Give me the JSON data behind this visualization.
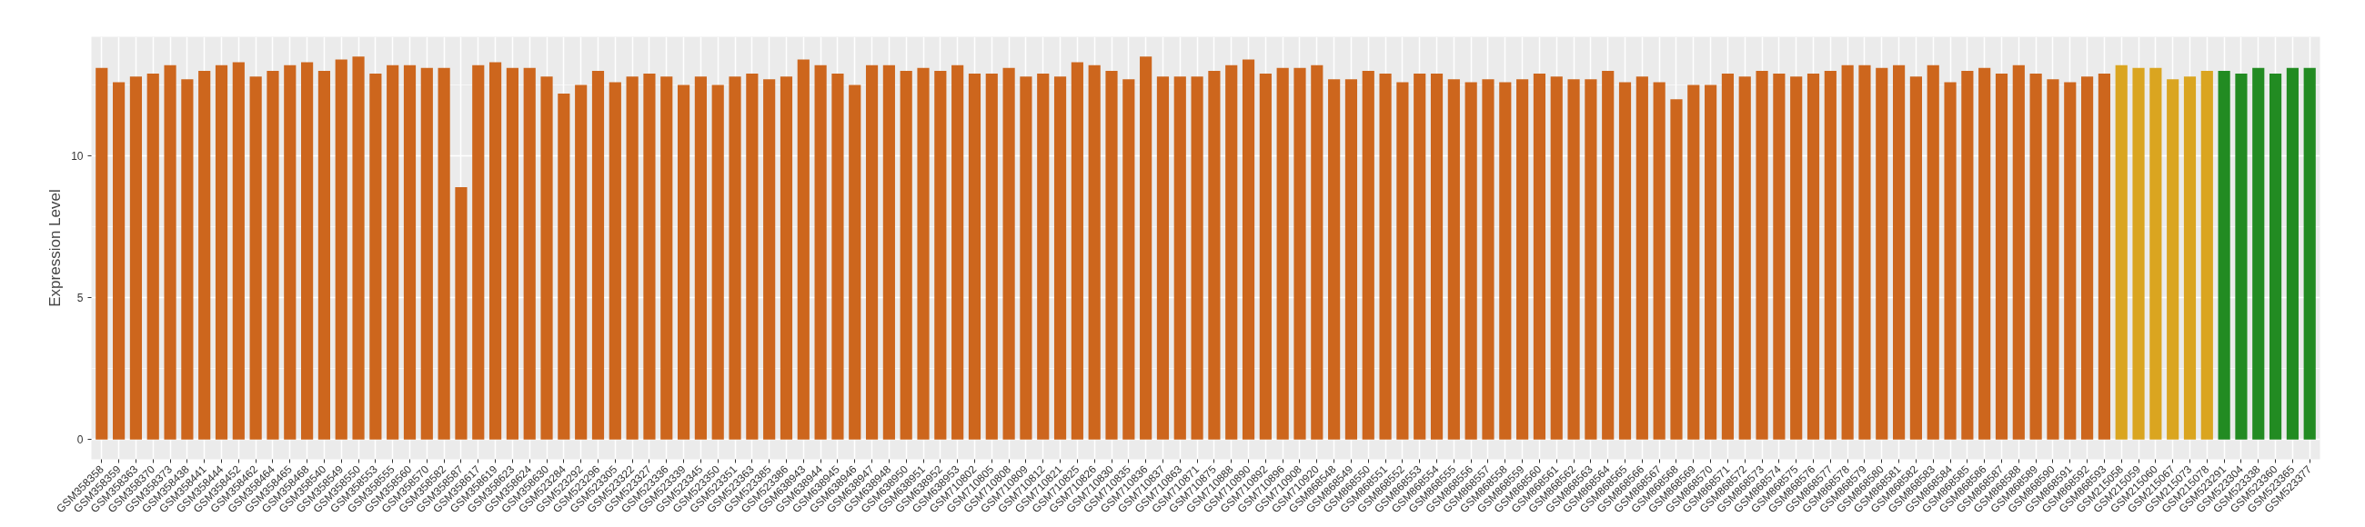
{
  "chart_data": {
    "type": "bar",
    "ylabel": "Expression Level",
    "categories": [
      "GSM358358",
      "GSM358359",
      "GSM358363",
      "GSM358370",
      "GSM358373",
      "GSM358438",
      "GSM358441",
      "GSM358444",
      "GSM358452",
      "GSM358462",
      "GSM358464",
      "GSM358465",
      "GSM358468",
      "GSM358540",
      "GSM358549",
      "GSM358550",
      "GSM358553",
      "GSM358555",
      "GSM358560",
      "GSM358570",
      "GSM358582",
      "GSM358587",
      "GSM358617",
      "GSM358619",
      "GSM358623",
      "GSM358624",
      "GSM358630",
      "GSM523284",
      "GSM523292",
      "GSM523296",
      "GSM523305",
      "GSM523322",
      "GSM523327",
      "GSM523336",
      "GSM523339",
      "GSM523345",
      "GSM523350",
      "GSM523351",
      "GSM523363",
      "GSM523385",
      "GSM523386",
      "GSM638943",
      "GSM638944",
      "GSM638945",
      "GSM638946",
      "GSM638947",
      "GSM638948",
      "GSM638950",
      "GSM638951",
      "GSM638952",
      "GSM638953",
      "GSM710802",
      "GSM710805",
      "GSM710808",
      "GSM710809",
      "GSM710812",
      "GSM710821",
      "GSM710825",
      "GSM710826",
      "GSM710830",
      "GSM710835",
      "GSM710836",
      "GSM710837",
      "GSM710863",
      "GSM710871",
      "GSM710875",
      "GSM710888",
      "GSM710890",
      "GSM710892",
      "GSM710896",
      "GSM710908",
      "GSM710920",
      "GSM868548",
      "GSM868549",
      "GSM868550",
      "GSM868551",
      "GSM868552",
      "GSM868553",
      "GSM868554",
      "GSM868555",
      "GSM868556",
      "GSM868557",
      "GSM868558",
      "GSM868559",
      "GSM868560",
      "GSM868561",
      "GSM868562",
      "GSM868563",
      "GSM868564",
      "GSM868565",
      "GSM868566",
      "GSM868567",
      "GSM868568",
      "GSM868569",
      "GSM868570",
      "GSM868571",
      "GSM868572",
      "GSM868573",
      "GSM868574",
      "GSM868575",
      "GSM868576",
      "GSM868577",
      "GSM868578",
      "GSM868579",
      "GSM868580",
      "GSM868581",
      "GSM868582",
      "GSM868583",
      "GSM868584",
      "GSM868585",
      "GSM868586",
      "GSM868587",
      "GSM868588",
      "GSM868589",
      "GSM868590",
      "GSM868591",
      "GSM868592",
      "GSM868593",
      "GSM215058",
      "GSM215059",
      "GSM215060",
      "GSM215067",
      "GSM215073",
      "GSM215078",
      "GSM523291",
      "GSM523304",
      "GSM523338",
      "GSM523360",
      "GSM523365",
      "GSM523377"
    ],
    "values": [
      13.1,
      12.6,
      12.8,
      12.9,
      13.2,
      12.7,
      13.0,
      13.2,
      13.3,
      12.8,
      13.0,
      13.2,
      13.3,
      13.0,
      13.4,
      13.5,
      12.9,
      13.2,
      13.2,
      13.1,
      13.1,
      8.9,
      13.2,
      13.3,
      13.1,
      13.1,
      12.8,
      12.2,
      12.5,
      13.0,
      12.6,
      12.8,
      12.9,
      12.8,
      12.5,
      12.8,
      12.5,
      12.8,
      12.9,
      12.7,
      12.8,
      13.4,
      13.2,
      12.9,
      12.5,
      13.2,
      13.2,
      13.0,
      13.1,
      13.0,
      13.2,
      12.9,
      12.9,
      13.1,
      12.8,
      12.9,
      12.8,
      13.3,
      13.2,
      13.0,
      12.7,
      13.5,
      12.8,
      12.8,
      12.8,
      13.0,
      13.2,
      13.4,
      12.9,
      13.1,
      13.1,
      13.2,
      12.7,
      12.7,
      13.0,
      12.9,
      12.6,
      12.9,
      12.9,
      12.7,
      12.6,
      12.7,
      12.6,
      12.7,
      12.9,
      12.8,
      12.7,
      12.7,
      13.0,
      12.6,
      12.8,
      12.6,
      12.0,
      12.5,
      12.5,
      12.9,
      12.8,
      13.0,
      12.9,
      12.8,
      12.9,
      13.0,
      13.2,
      13.2,
      13.1,
      13.2,
      12.8,
      13.2,
      12.6,
      13.0,
      13.1,
      12.9,
      13.2,
      12.9,
      12.7,
      12.6,
      12.8,
      12.9,
      13.2,
      13.1,
      13.1,
      12.7,
      12.8,
      13.0,
      13.0,
      12.9,
      13.1,
      12.9,
      13.1,
      13.1
    ],
    "colors": [
      "#cd661d",
      "#cd661d",
      "#cd661d",
      "#cd661d",
      "#cd661d",
      "#cd661d",
      "#cd661d",
      "#cd661d",
      "#cd661d",
      "#cd661d",
      "#cd661d",
      "#cd661d",
      "#cd661d",
      "#cd661d",
      "#cd661d",
      "#cd661d",
      "#cd661d",
      "#cd661d",
      "#cd661d",
      "#cd661d",
      "#cd661d",
      "#cd661d",
      "#cd661d",
      "#cd661d",
      "#cd661d",
      "#cd661d",
      "#cd661d",
      "#cd661d",
      "#cd661d",
      "#cd661d",
      "#cd661d",
      "#cd661d",
      "#cd661d",
      "#cd661d",
      "#cd661d",
      "#cd661d",
      "#cd661d",
      "#cd661d",
      "#cd661d",
      "#cd661d",
      "#cd661d",
      "#cd661d",
      "#cd661d",
      "#cd661d",
      "#cd661d",
      "#cd661d",
      "#cd661d",
      "#cd661d",
      "#cd661d",
      "#cd661d",
      "#cd661d",
      "#cd661d",
      "#cd661d",
      "#cd661d",
      "#cd661d",
      "#cd661d",
      "#cd661d",
      "#cd661d",
      "#cd661d",
      "#cd661d",
      "#cd661d",
      "#cd661d",
      "#cd661d",
      "#cd661d",
      "#cd661d",
      "#cd661d",
      "#cd661d",
      "#cd661d",
      "#cd661d",
      "#cd661d",
      "#cd661d",
      "#cd661d",
      "#cd661d",
      "#cd661d",
      "#cd661d",
      "#cd661d",
      "#cd661d",
      "#cd661d",
      "#cd661d",
      "#cd661d",
      "#cd661d",
      "#cd661d",
      "#cd661d",
      "#cd661d",
      "#cd661d",
      "#cd661d",
      "#cd661d",
      "#cd661d",
      "#cd661d",
      "#cd661d",
      "#cd661d",
      "#cd661d",
      "#cd661d",
      "#cd661d",
      "#cd661d",
      "#cd661d",
      "#cd661d",
      "#cd661d",
      "#cd661d",
      "#cd661d",
      "#cd661d",
      "#cd661d",
      "#cd661d",
      "#cd661d",
      "#cd661d",
      "#cd661d",
      "#cd661d",
      "#cd661d",
      "#cd661d",
      "#cd661d",
      "#cd661d",
      "#cd661d",
      "#cd661d",
      "#cd661d",
      "#cd661d",
      "#cd661d",
      "#cd661d",
      "#cd661d",
      "#daa520",
      "#daa520",
      "#daa520",
      "#daa520",
      "#daa520",
      "#daa520",
      "#228b22",
      "#228b22",
      "#228b22",
      "#228b22",
      "#228b22",
      "#228b22"
    ],
    "ylim": [
      -0.7,
      14.2
    ],
    "yticks": [
      0,
      5,
      10
    ],
    "grid": true
  }
}
